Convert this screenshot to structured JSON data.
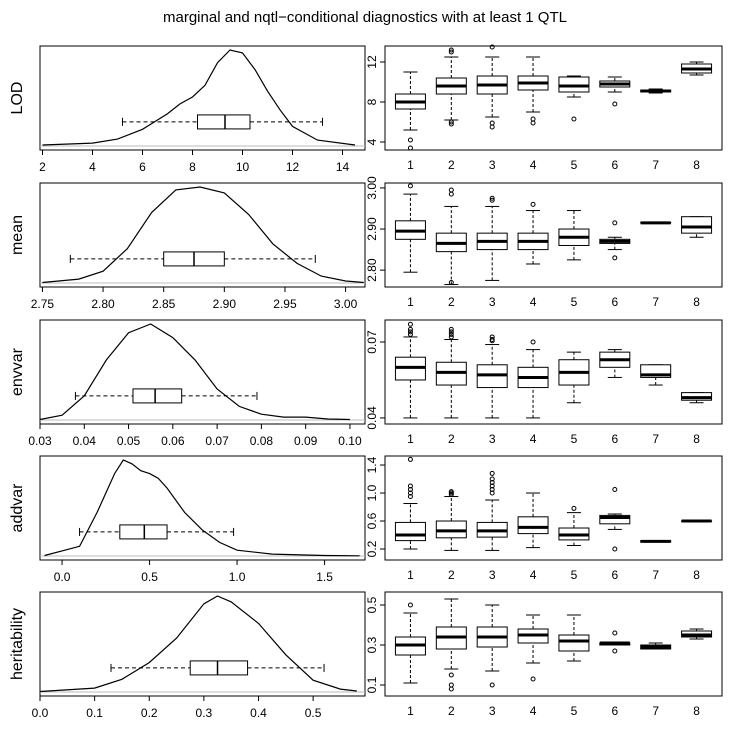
{
  "title": "marginal and nqtl−conditional diagnostics with at least 1 QTL",
  "chart_data": [
    {
      "type": "density",
      "ylabel": "LOD",
      "x": [
        2,
        4,
        5,
        6,
        7,
        7.5,
        8,
        8.5,
        9,
        9.5,
        10,
        10.5,
        11,
        11.5,
        12,
        13,
        14.5
      ],
      "density": [
        0.01,
        0.03,
        0.07,
        0.17,
        0.33,
        0.43,
        0.5,
        0.62,
        0.85,
        0.98,
        0.95,
        0.78,
        0.56,
        0.37,
        0.2,
        0.06,
        0.01
      ],
      "box": {
        "whisker_low": 5.2,
        "q1": 8.2,
        "median": 9.3,
        "q3": 10.3,
        "whisker_high": 13.2,
        "outliers": []
      },
      "xlim": [
        1.9,
        14.9
      ],
      "xticks": [
        2,
        4,
        6,
        8,
        10,
        12,
        14
      ]
    },
    {
      "type": "boxplot",
      "categories": [
        "1",
        "2",
        "3",
        "4",
        "5",
        "6",
        "7",
        "8"
      ],
      "boxes": [
        {
          "whisker_low": 5.2,
          "q1": 7.3,
          "median": 8.0,
          "q3": 8.8,
          "whisker_high": 11.0,
          "outliers": [
            4.2,
            3.4
          ]
        },
        {
          "whisker_low": 6.2,
          "q1": 8.8,
          "median": 9.6,
          "q3": 10.4,
          "whisker_high": 12.5,
          "outliers": [
            13.0,
            13.2,
            5.8,
            6.0
          ]
        },
        {
          "whisker_low": 6.5,
          "q1": 8.8,
          "median": 9.7,
          "q3": 10.6,
          "whisker_high": 12.5,
          "outliers": [
            13.5,
            5.5,
            5.9
          ]
        },
        {
          "whisker_low": 7.0,
          "q1": 9.2,
          "median": 9.9,
          "q3": 10.6,
          "whisker_high": 12.5,
          "outliers": [
            5.9,
            6.3
          ]
        },
        {
          "whisker_low": 8.5,
          "q1": 9.0,
          "median": 9.6,
          "q3": 10.5,
          "whisker_high": 10.6,
          "outliers": [
            6.3
          ]
        },
        {
          "whisker_low": 9.0,
          "q1": 9.5,
          "median": 9.8,
          "q3": 10.1,
          "whisker_high": 10.5,
          "outliers": [
            7.8
          ]
        },
        {
          "whisker_low": 8.9,
          "q1": 9.0,
          "median": 9.1,
          "q3": 9.2,
          "whisker_high": 9.3,
          "outliers": []
        },
        {
          "whisker_low": 10.7,
          "q1": 10.9,
          "median": 11.3,
          "q3": 11.8,
          "whisker_high": 12.0,
          "outliers": []
        }
      ],
      "ylim": [
        3.2,
        13.6
      ],
      "yticks": [
        4,
        8,
        12
      ]
    },
    {
      "type": "density",
      "ylabel": "mean",
      "x": [
        2.75,
        2.78,
        2.8,
        2.82,
        2.84,
        2.86,
        2.88,
        2.9,
        2.92,
        2.94,
        2.96,
        2.98,
        3.0,
        3.015
      ],
      "density": [
        0.005,
        0.04,
        0.12,
        0.35,
        0.72,
        0.95,
        0.98,
        0.92,
        0.7,
        0.4,
        0.2,
        0.07,
        0.02,
        0.005
      ],
      "box": {
        "whisker_low": 2.773,
        "q1": 2.85,
        "median": 2.875,
        "q3": 2.9,
        "whisker_high": 2.975,
        "outliers": []
      },
      "xlim": [
        2.748,
        3.016
      ],
      "xticks": [
        {
          "value": 2.75,
          "label": "2.75"
        },
        {
          "value": 2.8,
          "label": "2.80"
        },
        {
          "value": 2.85,
          "label": "2.85"
        },
        {
          "value": 2.9,
          "label": "2.90"
        },
        {
          "value": 2.95,
          "label": "2.95"
        },
        {
          "value": 3.0,
          "label": "3.00"
        }
      ]
    },
    {
      "type": "boxplot",
      "categories": [
        "1",
        "2",
        "3",
        "4",
        "5",
        "6",
        "7",
        "8"
      ],
      "boxes": [
        {
          "whisker_low": 2.795,
          "q1": 2.875,
          "median": 2.895,
          "q3": 2.92,
          "whisker_high": 2.985,
          "outliers": [
            3.005
          ]
        },
        {
          "whisker_low": 2.765,
          "q1": 2.845,
          "median": 2.865,
          "q3": 2.89,
          "whisker_high": 2.955,
          "outliers": [
            2.995,
            2.985,
            2.77
          ]
        },
        {
          "whisker_low": 2.775,
          "q1": 2.85,
          "median": 2.87,
          "q3": 2.89,
          "whisker_high": 2.955,
          "outliers": [
            2.975,
            2.97
          ]
        },
        {
          "whisker_low": 2.815,
          "q1": 2.85,
          "median": 2.87,
          "q3": 2.89,
          "whisker_high": 2.945,
          "outliers": [
            2.96
          ]
        },
        {
          "whisker_low": 2.825,
          "q1": 2.86,
          "median": 2.88,
          "q3": 2.9,
          "whisker_high": 2.945,
          "outliers": []
        },
        {
          "whisker_low": 2.85,
          "q1": 2.865,
          "median": 2.87,
          "q3": 2.875,
          "whisker_high": 2.88,
          "outliers": [
            2.915,
            2.83
          ]
        },
        {
          "whisker_low": 2.915,
          "q1": 2.915,
          "median": 2.915,
          "q3": 2.916,
          "whisker_high": 2.916,
          "outliers": []
        },
        {
          "whisker_low": 2.88,
          "q1": 2.89,
          "median": 2.905,
          "q3": 2.93,
          "whisker_high": 2.93,
          "outliers": []
        }
      ],
      "ylim": [
        2.759,
        3.012
      ],
      "yticks": [
        {
          "value": 2.8,
          "label": "2.80"
        },
        {
          "value": 2.9,
          "label": "2.90"
        },
        {
          "value": 3.0,
          "label": "3.00"
        }
      ]
    },
    {
      "type": "density",
      "ylabel": "envvar",
      "x": [
        0.03,
        0.035,
        0.04,
        0.045,
        0.05,
        0.055,
        0.06,
        0.065,
        0.07,
        0.075,
        0.08,
        0.085,
        0.09,
        0.095,
        0.1
      ],
      "density": [
        0.005,
        0.05,
        0.25,
        0.62,
        0.9,
        0.99,
        0.85,
        0.62,
        0.32,
        0.14,
        0.06,
        0.03,
        0.03,
        0.01,
        0.005
      ],
      "box": {
        "whisker_low": 0.038,
        "q1": 0.051,
        "median": 0.056,
        "q3": 0.062,
        "whisker_high": 0.079,
        "outliers": []
      },
      "xlim": [
        0.03,
        0.1034
      ],
      "xticks": [
        0.03,
        0.04,
        0.05,
        0.06,
        0.07,
        0.08,
        0.09,
        {
          "value": 0.1,
          "label": "0.10"
        }
      ]
    },
    {
      "type": "boxplot",
      "categories": [
        "1",
        "2",
        "3",
        "4",
        "5",
        "6",
        "7",
        "8"
      ],
      "boxes": [
        {
          "whisker_low": 0.04,
          "q1": 0.055,
          "median": 0.06,
          "q3": 0.064,
          "whisker_high": 0.072,
          "outliers": [
            0.077,
            0.075,
            0.074,
            0.073
          ]
        },
        {
          "whisker_low": 0.04,
          "q1": 0.053,
          "median": 0.058,
          "q3": 0.062,
          "whisker_high": 0.071,
          "outliers": [
            0.075,
            0.074,
            0.073,
            0.072
          ]
        },
        {
          "whisker_low": 0.04,
          "q1": 0.052,
          "median": 0.057,
          "q3": 0.061,
          "whisker_high": 0.069,
          "outliers": [
            0.072,
            0.071,
            0.0705
          ]
        },
        {
          "whisker_low": 0.04,
          "q1": 0.052,
          "median": 0.056,
          "q3": 0.06,
          "whisker_high": 0.067,
          "outliers": [
            0.07
          ]
        },
        {
          "whisker_low": 0.046,
          "q1": 0.053,
          "median": 0.058,
          "q3": 0.063,
          "whisker_high": 0.066,
          "outliers": []
        },
        {
          "whisker_low": 0.056,
          "q1": 0.06,
          "median": 0.063,
          "q3": 0.066,
          "whisker_high": 0.067,
          "outliers": []
        },
        {
          "whisker_low": 0.053,
          "q1": 0.056,
          "median": 0.057,
          "q3": 0.061,
          "whisker_high": 0.061,
          "outliers": []
        },
        {
          "whisker_low": 0.046,
          "q1": 0.047,
          "median": 0.048,
          "q3": 0.05,
          "whisker_high": 0.05,
          "outliers": []
        }
      ],
      "ylim": [
        0.0376,
        0.0787
      ],
      "yticks": [
        0.04,
        0.07
      ]
    },
    {
      "type": "density",
      "ylabel": "addvar",
      "x": [
        -0.1,
        0.1,
        0.2,
        0.3,
        0.35,
        0.4,
        0.45,
        0.5,
        0.55,
        0.6,
        0.7,
        0.8,
        0.9,
        1.0,
        1.2,
        1.5,
        1.7
      ],
      "density": [
        0.005,
        0.1,
        0.45,
        0.85,
        0.99,
        0.95,
        0.88,
        0.85,
        0.8,
        0.7,
        0.45,
        0.27,
        0.14,
        0.06,
        0.02,
        0.005,
        0.002
      ],
      "box": {
        "whisker_low": 0.1,
        "q1": 0.33,
        "median": 0.47,
        "q3": 0.6,
        "whisker_high": 0.98,
        "outliers": []
      },
      "xlim": [
        -0.126,
        1.731
      ],
      "xticks": [
        {
          "value": 0,
          "label": "0.0"
        },
        0.5,
        {
          "value": 1,
          "label": "1.0"
        },
        1.5
      ]
    },
    {
      "type": "boxplot",
      "categories": [
        "1",
        "2",
        "3",
        "4",
        "5",
        "6",
        "7",
        "8"
      ],
      "boxes": [
        {
          "whisker_low": 0.2,
          "q1": 0.32,
          "median": 0.4,
          "q3": 0.58,
          "whisker_high": 0.85,
          "outliers": [
            1.48,
            1.1,
            1.05,
            1.0,
            0.95
          ]
        },
        {
          "whisker_low": 0.18,
          "q1": 0.36,
          "median": 0.46,
          "q3": 0.6,
          "whisker_high": 0.95,
          "outliers": [
            1.02,
            1.0,
            0.98
          ]
        },
        {
          "whisker_low": 0.18,
          "q1": 0.37,
          "median": 0.46,
          "q3": 0.58,
          "whisker_high": 0.9,
          "outliers": [
            1.28,
            1.2,
            1.15,
            1.1,
            1.05,
            1.0
          ]
        },
        {
          "whisker_low": 0.22,
          "q1": 0.42,
          "median": 0.51,
          "q3": 0.66,
          "whisker_high": 1.0,
          "outliers": []
        },
        {
          "whisker_low": 0.25,
          "q1": 0.33,
          "median": 0.4,
          "q3": 0.5,
          "whisker_high": 0.72,
          "outliers": [
            0.78
          ]
        },
        {
          "whisker_low": 0.48,
          "q1": 0.56,
          "median": 0.65,
          "q3": 0.68,
          "whisker_high": 0.7,
          "outliers": [
            1.05,
            0.2
          ]
        },
        {
          "whisker_low": 0.3,
          "q1": 0.3,
          "median": 0.31,
          "q3": 0.32,
          "whisker_high": 0.32,
          "outliers": []
        },
        {
          "whisker_low": 0.6,
          "q1": 0.6,
          "median": 0.6,
          "q3": 0.6,
          "whisker_high": 0.6,
          "outliers": []
        }
      ],
      "ylim": [
        0.043,
        1.529
      ],
      "yticks": [
        0.2,
        0.6,
        {
          "value": 1,
          "label": "1.0"
        },
        1.4
      ]
    },
    {
      "type": "density",
      "ylabel": "heritability",
      "x": [
        0.0,
        0.1,
        0.15,
        0.2,
        0.25,
        0.3,
        0.325,
        0.35,
        0.4,
        0.45,
        0.5,
        0.55,
        0.58
      ],
      "density": [
        0.005,
        0.04,
        0.13,
        0.3,
        0.55,
        0.9,
        0.98,
        0.92,
        0.7,
        0.38,
        0.12,
        0.03,
        0.01
      ],
      "box": {
        "whisker_low": 0.13,
        "q1": 0.275,
        "median": 0.325,
        "q3": 0.38,
        "whisker_high": 0.52,
        "outliers": []
      },
      "xlim": [
        0,
        0.595
      ],
      "xticks": [
        {
          "value": 0,
          "label": "0.0"
        },
        0.1,
        0.2,
        0.3,
        0.4,
        0.5
      ]
    },
    {
      "type": "boxplot",
      "categories": [
        "1",
        "2",
        "3",
        "4",
        "5",
        "6",
        "7",
        "8"
      ],
      "boxes": [
        {
          "whisker_low": 0.11,
          "q1": 0.25,
          "median": 0.3,
          "q3": 0.34,
          "whisker_high": 0.46,
          "outliers": [
            0.5
          ]
        },
        {
          "whisker_low": 0.18,
          "q1": 0.28,
          "median": 0.34,
          "q3": 0.39,
          "whisker_high": 0.53,
          "outliers": [
            0.15,
            0.1,
            0.08
          ]
        },
        {
          "whisker_low": 0.17,
          "q1": 0.29,
          "median": 0.34,
          "q3": 0.39,
          "whisker_high": 0.5,
          "outliers": [
            0.1
          ]
        },
        {
          "whisker_low": 0.21,
          "q1": 0.31,
          "median": 0.35,
          "q3": 0.38,
          "whisker_high": 0.45,
          "outliers": [
            0.13
          ]
        },
        {
          "whisker_low": 0.22,
          "q1": 0.27,
          "median": 0.32,
          "q3": 0.35,
          "whisker_high": 0.45,
          "outliers": []
        },
        {
          "whisker_low": 0.3,
          "q1": 0.3,
          "median": 0.31,
          "q3": 0.31,
          "whisker_high": 0.31,
          "outliers": [
            0.36,
            0.27
          ]
        },
        {
          "whisker_low": 0.28,
          "q1": 0.28,
          "median": 0.29,
          "q3": 0.3,
          "whisker_high": 0.31,
          "outliers": []
        },
        {
          "whisker_low": 0.33,
          "q1": 0.34,
          "median": 0.35,
          "q3": 0.37,
          "whisker_high": 0.38,
          "outliers": []
        }
      ],
      "ylim": [
        0.045,
        0.565
      ],
      "yticks": [
        0.1,
        0.3,
        0.5
      ]
    }
  ]
}
